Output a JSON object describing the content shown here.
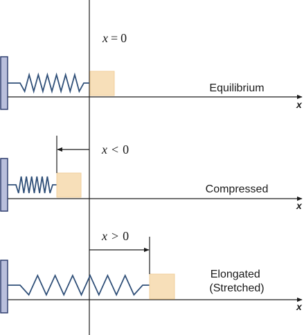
{
  "colors": {
    "line": "#1a1a1a",
    "spring": "#2f4f78",
    "wall_fill": "#b9bfdc",
    "wall_stroke": "#2f3e6e",
    "block_fill": "#f7dfb9",
    "block_stroke": "#f0cf9c"
  },
  "panels": [
    {
      "id": "equilibrium",
      "state_label": [
        "Equilibrium"
      ],
      "condition": {
        "var": "x",
        "op": "=",
        "rhs": "0"
      },
      "axis_label": "x",
      "spring_coils": 7,
      "arrow": "none"
    },
    {
      "id": "compressed",
      "state_label": [
        "Compressed"
      ],
      "condition": {
        "var": "x",
        "op": "<",
        "rhs": "0"
      },
      "axis_label": "x",
      "spring_coils": 7,
      "arrow": "left"
    },
    {
      "id": "elongated",
      "state_label": [
        "Elongated",
        "(Stretched)"
      ],
      "condition": {
        "var": "x",
        "op": ">",
        "rhs": "0"
      },
      "axis_label": "x",
      "spring_coils": 7,
      "arrow": "right"
    }
  ]
}
